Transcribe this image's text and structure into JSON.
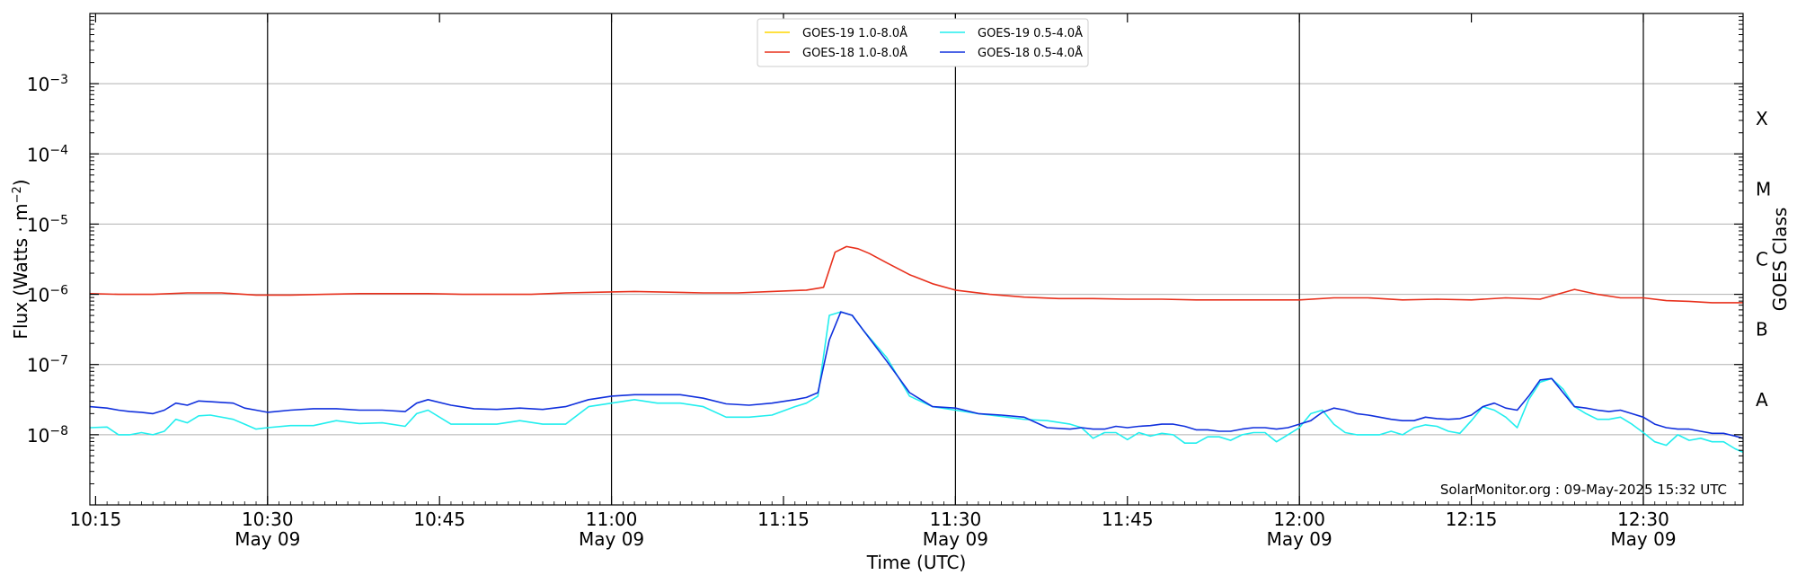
{
  "chart_data": {
    "type": "line",
    "title": "",
    "xlabel": "Time (UTC)",
    "ylabel": "Flux (Watts · m",
    "ylabel_sup": "−2",
    "ylabel_close": ")",
    "right_label": "GOES Class",
    "y_scale": "log",
    "ylim_exp": [
      -9,
      -2
    ],
    "y_ticks": [
      {
        "exp": -8,
        "label": "10",
        "sup": "−8"
      },
      {
        "exp": -7,
        "label": "10",
        "sup": "−7"
      },
      {
        "exp": -6,
        "label": "10",
        "sup": "−6"
      },
      {
        "exp": -5,
        "label": "10",
        "sup": "−5"
      },
      {
        "exp": -4,
        "label": "10",
        "sup": "−4"
      },
      {
        "exp": -3,
        "label": "10",
        "sup": "−3"
      }
    ],
    "goes_classes": [
      {
        "label": "A",
        "exp": -7.5
      },
      {
        "label": "B",
        "exp": -6.5
      },
      {
        "label": "C",
        "exp": -5.5
      },
      {
        "label": "M",
        "exp": -4.5
      },
      {
        "label": "X",
        "exp": -3.5
      }
    ],
    "xlim_min": [
      614.5,
      758.7
    ],
    "x_ticks": [
      {
        "min": 615,
        "label": "10:15",
        "sub": ""
      },
      {
        "min": 630,
        "label": "10:30",
        "sub": "May 09"
      },
      {
        "min": 645,
        "label": "10:45",
        "sub": ""
      },
      {
        "min": 660,
        "label": "11:00",
        "sub": "May 09"
      },
      {
        "min": 675,
        "label": "11:15",
        "sub": ""
      },
      {
        "min": 690,
        "label": "11:30",
        "sub": "May 09"
      },
      {
        "min": 705,
        "label": "11:45",
        "sub": ""
      },
      {
        "min": 720,
        "label": "12:00",
        "sub": "May 09"
      },
      {
        "min": 735,
        "label": "12:15",
        "sub": ""
      },
      {
        "min": 750,
        "label": "12:30",
        "sub": "May 09"
      }
    ],
    "vlines_min": [
      630,
      660,
      690,
      720,
      750
    ],
    "grid": "horizontal",
    "legend_position": "top-center",
    "annotation": "SolarMonitor.org : 09-May-2025 15:32 UTC",
    "series": [
      {
        "name": "GOES-19 1.0-8.0Å",
        "color": "#FFD700",
        "visible": false,
        "x": [],
        "y_exp": []
      },
      {
        "name": "GOES-18 1.0-8.0Å",
        "color": "#E8301C",
        "visible": true,
        "x": [
          614.5,
          617,
          620,
          623,
          626,
          629,
          632,
          635,
          638,
          641,
          644,
          647,
          650,
          653,
          656,
          659,
          662,
          665,
          668,
          671,
          674,
          677,
          678.5,
          679.5,
          680.5,
          681.5,
          682.5,
          684,
          686,
          688,
          690,
          693,
          696,
          699,
          702,
          705,
          708,
          711,
          714,
          717,
          720,
          723,
          726,
          729,
          732,
          735,
          738,
          741,
          744,
          746,
          748,
          750,
          752,
          754,
          756,
          758.7
        ],
        "y_exp": [
          -5.99,
          -6.0,
          -6.0,
          -5.98,
          -5.98,
          -6.01,
          -6.01,
          -6.0,
          -5.99,
          -5.99,
          -5.99,
          -6.0,
          -6.0,
          -6.0,
          -5.98,
          -5.97,
          -5.96,
          -5.97,
          -5.98,
          -5.98,
          -5.96,
          -5.94,
          -5.9,
          -5.4,
          -5.32,
          -5.35,
          -5.42,
          -5.55,
          -5.72,
          -5.85,
          -5.94,
          -6.0,
          -6.04,
          -6.06,
          -6.06,
          -6.07,
          -6.07,
          -6.08,
          -6.08,
          -6.08,
          -6.08,
          -6.05,
          -6.05,
          -6.08,
          -6.07,
          -6.08,
          -6.05,
          -6.07,
          -5.93,
          -6.0,
          -6.05,
          -6.05,
          -6.09,
          -6.1,
          -6.12,
          -6.12
        ]
      },
      {
        "name": "GOES-19 0.5-4.0Å",
        "color": "#22EEEE",
        "visible": true,
        "x": [
          614.5,
          616,
          617,
          618,
          619,
          620,
          621,
          622,
          623,
          624,
          625,
          627,
          628,
          629,
          630,
          632,
          634,
          636,
          638,
          640,
          642,
          643,
          644,
          646,
          648,
          650,
          652,
          654,
          656,
          658,
          660,
          662,
          664,
          666,
          668,
          670,
          672,
          674,
          676,
          677,
          678,
          679,
          680,
          681,
          682,
          684,
          686,
          688,
          690,
          692,
          694,
          696,
          698,
          700,
          701,
          702,
          703,
          704,
          705,
          706,
          707,
          708,
          709,
          710,
          711,
          712,
          713,
          714,
          715,
          716,
          717,
          718,
          719,
          720,
          721,
          722,
          723,
          724,
          725,
          726,
          727,
          728,
          729,
          730,
          731,
          732,
          733,
          734,
          735,
          736,
          737,
          738,
          739,
          740,
          741,
          742,
          743,
          744,
          745,
          746,
          747,
          748,
          749,
          750,
          751,
          752,
          753,
          754,
          755,
          756,
          757,
          758,
          758.7
        ],
        "y_exp": [
          -7.9,
          -7.89,
          -8.0,
          -8.0,
          -7.97,
          -8.0,
          -7.95,
          -7.78,
          -7.83,
          -7.73,
          -7.72,
          -7.78,
          -7.85,
          -7.92,
          -7.9,
          -7.87,
          -7.87,
          -7.8,
          -7.84,
          -7.83,
          -7.88,
          -7.7,
          -7.65,
          -7.85,
          -7.85,
          -7.85,
          -7.8,
          -7.85,
          -7.85,
          -7.6,
          -7.55,
          -7.5,
          -7.55,
          -7.55,
          -7.6,
          -7.75,
          -7.75,
          -7.72,
          -7.6,
          -7.55,
          -7.45,
          -6.3,
          -6.25,
          -6.3,
          -6.52,
          -6.9,
          -7.45,
          -7.6,
          -7.65,
          -7.7,
          -7.74,
          -7.78,
          -7.8,
          -7.85,
          -7.9,
          -8.05,
          -7.97,
          -7.97,
          -8.07,
          -7.97,
          -8.02,
          -7.98,
          -8.0,
          -8.12,
          -8.12,
          -8.03,
          -8.03,
          -8.08,
          -8.0,
          -7.97,
          -7.97,
          -8.1,
          -8.0,
          -7.9,
          -7.7,
          -7.65,
          -7.85,
          -7.97,
          -8.0,
          -8.0,
          -8.0,
          -7.95,
          -8.0,
          -7.9,
          -7.86,
          -7.88,
          -7.95,
          -7.98,
          -7.8,
          -7.6,
          -7.65,
          -7.75,
          -7.9,
          -7.5,
          -7.25,
          -7.2,
          -7.35,
          -7.6,
          -7.7,
          -7.78,
          -7.78,
          -7.75,
          -7.85,
          -7.97,
          -8.1,
          -8.15,
          -8.0,
          -8.08,
          -8.05,
          -8.1,
          -8.1,
          -8.2,
          -8.25
        ]
      },
      {
        "name": "GOES-18 0.5-4.0Å",
        "color": "#1030DD",
        "visible": true,
        "x": [
          614.5,
          616,
          617,
          618,
          619,
          620,
          621,
          622,
          623,
          624,
          625,
          627,
          628,
          629,
          630,
          632,
          634,
          636,
          638,
          640,
          642,
          643,
          644,
          646,
          648,
          650,
          652,
          654,
          656,
          658,
          660,
          662,
          664,
          666,
          668,
          670,
          672,
          674,
          676,
          677,
          678,
          679,
          680,
          681,
          682,
          684,
          686,
          688,
          690,
          692,
          694,
          696,
          698,
          700,
          701,
          702,
          703,
          704,
          705,
          706,
          707,
          708,
          709,
          710,
          711,
          712,
          713,
          714,
          715,
          716,
          717,
          718,
          719,
          720,
          721,
          722,
          723,
          724,
          725,
          726,
          727,
          728,
          729,
          730,
          731,
          732,
          733,
          734,
          735,
          736,
          737,
          738,
          739,
          740,
          741,
          742,
          743,
          744,
          745,
          746,
          747,
          748,
          749,
          750,
          751,
          752,
          753,
          754,
          755,
          756,
          757,
          758,
          758.7
        ],
        "y_exp": [
          -7.6,
          -7.62,
          -7.65,
          -7.67,
          -7.68,
          -7.7,
          -7.65,
          -7.55,
          -7.58,
          -7.52,
          -7.53,
          -7.55,
          -7.62,
          -7.65,
          -7.68,
          -7.65,
          -7.63,
          -7.63,
          -7.65,
          -7.65,
          -7.67,
          -7.55,
          -7.5,
          -7.58,
          -7.63,
          -7.64,
          -7.62,
          -7.64,
          -7.6,
          -7.5,
          -7.45,
          -7.43,
          -7.43,
          -7.43,
          -7.48,
          -7.56,
          -7.58,
          -7.55,
          -7.5,
          -7.47,
          -7.4,
          -6.65,
          -6.25,
          -6.3,
          -6.52,
          -6.95,
          -7.4,
          -7.6,
          -7.62,
          -7.7,
          -7.72,
          -7.75,
          -7.9,
          -7.92,
          -7.9,
          -7.92,
          -7.92,
          -7.88,
          -7.9,
          -7.88,
          -7.87,
          -7.85,
          -7.85,
          -7.88,
          -7.93,
          -7.93,
          -7.95,
          -7.95,
          -7.92,
          -7.9,
          -7.9,
          -7.92,
          -7.9,
          -7.85,
          -7.8,
          -7.68,
          -7.62,
          -7.65,
          -7.7,
          -7.72,
          -7.75,
          -7.78,
          -7.8,
          -7.8,
          -7.75,
          -7.77,
          -7.78,
          -7.77,
          -7.72,
          -7.6,
          -7.55,
          -7.62,
          -7.65,
          -7.45,
          -7.22,
          -7.2,
          -7.4,
          -7.6,
          -7.62,
          -7.65,
          -7.67,
          -7.65,
          -7.7,
          -7.75,
          -7.85,
          -7.9,
          -7.92,
          -7.92,
          -7.95,
          -7.98,
          -7.98,
          -8.02,
          -8.05
        ]
      }
    ]
  }
}
